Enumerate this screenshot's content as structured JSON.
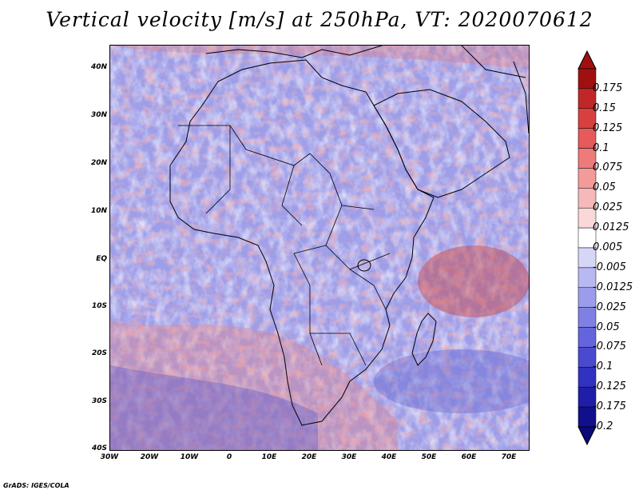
{
  "title": "Vertical velocity [m/s] at 250hPa, VT: 2020070612",
  "credit": "GrADS: IGES/COLA",
  "map": {
    "region": "Africa",
    "lat_range": [
      -40,
      45
    ],
    "lon_range": [
      -30,
      75
    ],
    "lat_labels": [
      "40N",
      "30N",
      "20N",
      "10N",
      "EQ",
      "10S",
      "20S",
      "30S",
      "40S"
    ],
    "lon_labels": [
      "30W",
      "20W",
      "10W",
      "0",
      "10E",
      "20E",
      "30E",
      "40E",
      "50E",
      "60E",
      "70E"
    ]
  },
  "colorbar": {
    "levels": [
      "0.175",
      "0.15",
      "0.125",
      "0.1",
      "0.075",
      "0.05",
      "0.025",
      "0.0125",
      "0.005",
      "-0.005",
      "-0.0125",
      "-0.025",
      "-0.05",
      "-0.075",
      "-0.1",
      "-0.125",
      "-0.175",
      "-0.2"
    ],
    "colors": [
      "#a01010",
      "#c02828",
      "#d84040",
      "#e55a5a",
      "#ee7a7a",
      "#f39a9a",
      "#f6b8b8",
      "#fbd8d8",
      "#ffffff",
      "#d6d6f6",
      "#b8b8f2",
      "#9c9cec",
      "#8080e4",
      "#6464dc",
      "#4a4ad0",
      "#3232c0",
      "#1e1ea8",
      "#10108c"
    ]
  }
}
